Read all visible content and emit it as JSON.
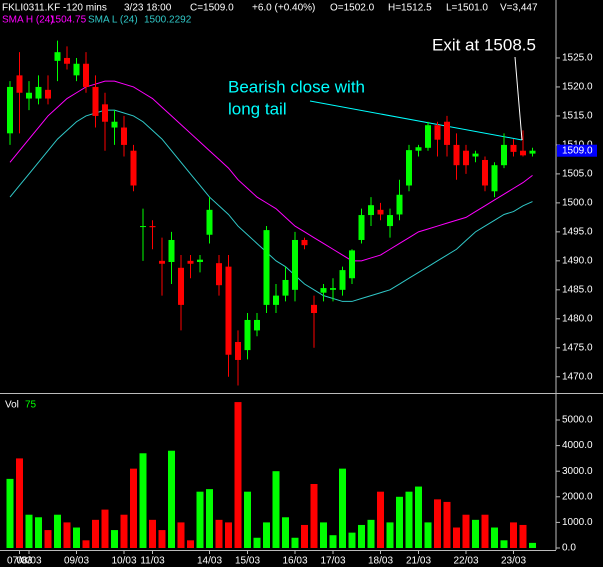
{
  "chart_data": {
    "type": "candlestick",
    "header": {
      "symbol": "FKLI0311.KF -120 mins",
      "time": "3/23 18:00",
      "close": "C=1509.0",
      "change": "+6.0 (+0.40%)",
      "open": "O=1502.0",
      "high": "H=1512.5",
      "low": "L=1501.0",
      "volume": "V=3,447"
    },
    "price_tag": "1509.0",
    "annotations": [
      {
        "lines": [
          "Bearish close with",
          "long tail"
        ],
        "color": "#00ffff"
      },
      {
        "lines": [
          "Exit at 1508.5"
        ],
        "color": "#ffffff"
      }
    ],
    "categories": [
      null,
      "07/03",
      "08/03",
      null,
      null,
      null,
      null,
      "09/03",
      null,
      null,
      null,
      null,
      "10/03",
      null,
      null,
      "11/03",
      null,
      null,
      null,
      null,
      null,
      "14/03",
      null,
      null,
      null,
      "15/03",
      null,
      null,
      null,
      null,
      "16/03",
      null,
      null,
      null,
      "17/03",
      null,
      null,
      null,
      null,
      "18/03",
      null,
      null,
      null,
      "21/03",
      null,
      null,
      null,
      null,
      "22/03",
      null,
      null,
      null,
      null,
      "23/03",
      null,
      null
    ],
    "open": [
      1512,
      1522,
      1518,
      1518,
      1519.5,
      1524.5,
      1525,
      1522,
      1524,
      1520,
      1517,
      1513,
      1513,
      1509,
      1496,
      1496,
      1490,
      1489.8,
      1488.8,
      1490,
      1489.8,
      1494.5,
      1489.6,
      1489,
      1476,
      1474.6,
      1478,
      1482.4,
      1482.4,
      1484,
      1485,
      1493.6,
      1482.4,
      1484.5,
      1485,
      1485,
      1487,
      1493.6,
      1497.9,
      1498.8,
      1496,
      1498,
      1503,
      1509,
      1509.5,
      1513.4,
      1514,
      1510,
      1509,
      1508,
      1507.4,
      1502,
      1506.5,
      1510,
      1509,
      1508.5
    ],
    "high": [
      1521,
      1526,
      1521,
      1522,
      1522,
      1528,
      1527,
      1525,
      1526,
      1522,
      1519,
      1516,
      1515,
      1510,
      1499,
      1497,
      1494,
      1495,
      1491,
      1491,
      1491,
      1501,
      1491,
      1491,
      1478,
      1481,
      1481,
      1496,
      1486,
      1489,
      1495,
      1494,
      1484,
      1486,
      1487,
      1489,
      1492,
      1499,
      1501,
      1500,
      1499,
      1504,
      1510,
      1510,
      1514,
      1514,
      1515,
      1512,
      1510,
      1509,
      1508,
      1507,
      1512,
      1511,
      1512.5,
      1509.5
    ],
    "low": [
      1510,
      1512,
      1516,
      1517,
      1517,
      1521,
      1523,
      1521,
      1519,
      1513,
      1509,
      1510,
      1508,
      1502,
      1490,
      1492,
      1484,
      1486,
      1478,
      1487,
      1488,
      1493,
      1484,
      1470,
      1468.5,
      1473,
      1477,
      1481,
      1481,
      1483,
      1483,
      1492,
      1475,
      1483,
      1483,
      1484,
      1486,
      1493,
      1496,
      1497,
      1494,
      1497,
      1502,
      1508,
      1509,
      1508,
      1508,
      1504,
      1505,
      1507,
      1502,
      1501,
      1506,
      1508,
      1508,
      1508
    ],
    "close": [
      1520,
      1519,
      1519,
      1520,
      1518,
      1526,
      1524,
      1524,
      1520,
      1515,
      1514,
      1514,
      1510,
      1503,
      1496,
      1495.8,
      1489.5,
      1493.6,
      1482.4,
      1489.5,
      1490.2,
      1498.8,
      1485.8,
      1473.8,
      1472.9,
      1479.8,
      1479.8,
      1495.3,
      1484,
      1486.7,
      1493.6,
      1492.7,
      1481,
      1485.3,
      1485.3,
      1488.4,
      1491.8,
      1497.9,
      1499.6,
      1498,
      1497.9,
      1501.4,
      1509.1,
      1509.6,
      1513.4,
      1510.9,
      1510,
      1506.5,
      1506.5,
      1508.5,
      1503,
      1506.5,
      1510,
      1508.8,
      1508.2,
      1509
    ],
    "volume": [
      2700,
      3500,
      1300,
      1200,
      700,
      1300,
      1000,
      800,
      300,
      1100,
      1500,
      700,
      1300,
      3100,
      3700,
      1100,
      700,
      3800,
      1000,
      300,
      2200,
      2300,
      1100,
      1000,
      5700,
      2200,
      400,
      1000,
      3000,
      1200,
      400,
      900,
      2500,
      1000,
      500,
      3100,
      600,
      900,
      1100,
      2200,
      1000,
      2000,
      2200,
      2400,
      1000,
      1900,
      1800,
      800,
      1300,
      1100,
      1300,
      800,
      300,
      1000,
      900,
      200
    ],
    "up_color": "#00ff00",
    "down_color": "#ff0000",
    "series": [
      {
        "name": "SMA H (24)",
        "last_label": "1504.75",
        "color": "#ff00ff",
        "values": [
          1507,
          1509,
          1511,
          1513,
          1515,
          1516.5,
          1518,
          1519,
          1520,
          1520.5,
          1521,
          1521,
          1520.5,
          1520,
          1519,
          1518,
          1516.5,
          1515,
          1513.5,
          1512,
          1510.5,
          1509,
          1507.5,
          1506,
          1504,
          1502.5,
          1501,
          1500,
          1499,
          1497.5,
          1496,
          1495,
          1494,
          1493,
          1492,
          1491,
          1490,
          1490,
          1490.5,
          1491,
          1492,
          1493,
          1494,
          1495,
          1495.5,
          1496,
          1496.5,
          1497,
          1497.5,
          1498.5,
          1499.5,
          1500.5,
          1501.5,
          1502.5,
          1503.5,
          1504.75
        ]
      },
      {
        "name": "SMA L (24)",
        "last_label": "1500.2292",
        "color": "#30c8c8",
        "values": [
          1501,
          1503,
          1505,
          1507,
          1509,
          1511,
          1512.5,
          1514,
          1515,
          1515.5,
          1516,
          1516,
          1515.5,
          1515,
          1514,
          1512.5,
          1511,
          1509,
          1507,
          1505,
          1503,
          1501,
          1499.5,
          1498,
          1496,
          1494.5,
          1493,
          1491.5,
          1490,
          1489,
          1487.5,
          1486,
          1485,
          1484,
          1483.5,
          1483,
          1483,
          1483.5,
          1484,
          1484.5,
          1485,
          1486,
          1487,
          1488,
          1489,
          1490,
          1491,
          1492,
          1493.5,
          1495,
          1496,
          1497,
          1498,
          1498.5,
          1499.5,
          1500.2292
        ]
      }
    ],
    "ylim": [
      1467.2,
      1535
    ],
    "yticks": [
      {
        "value": 1470,
        "label": "1470.0"
      },
      {
        "value": 1475,
        "label": "1475.0"
      },
      {
        "value": 1480,
        "label": "1480.0"
      },
      {
        "value": 1485,
        "label": "1485.0"
      },
      {
        "value": 1490,
        "label": "1490.0"
      },
      {
        "value": 1495,
        "label": "1495.0"
      },
      {
        "value": 1500,
        "label": "1500.0"
      },
      {
        "value": 1505,
        "label": "1505.0"
      },
      {
        "value": 1510,
        "label": "1510.0"
      },
      {
        "value": 1515,
        "label": "1515.0"
      },
      {
        "value": 1520,
        "label": "1520.0"
      },
      {
        "value": 1525,
        "label": "1525.0"
      }
    ],
    "volume_panel": {
      "label": "Vol",
      "value_label": "75",
      "ylim": [
        0,
        6000
      ],
      "yticks": [
        {
          "value": 0,
          "label": "0.0"
        },
        {
          "value": 1000,
          "label": "1000.0"
        },
        {
          "value": 2000,
          "label": "2000.0"
        },
        {
          "value": 3000,
          "label": "3000.0"
        },
        {
          "value": 4000,
          "label": "4000.0"
        },
        {
          "value": 5000,
          "label": "5000.0"
        }
      ]
    }
  }
}
